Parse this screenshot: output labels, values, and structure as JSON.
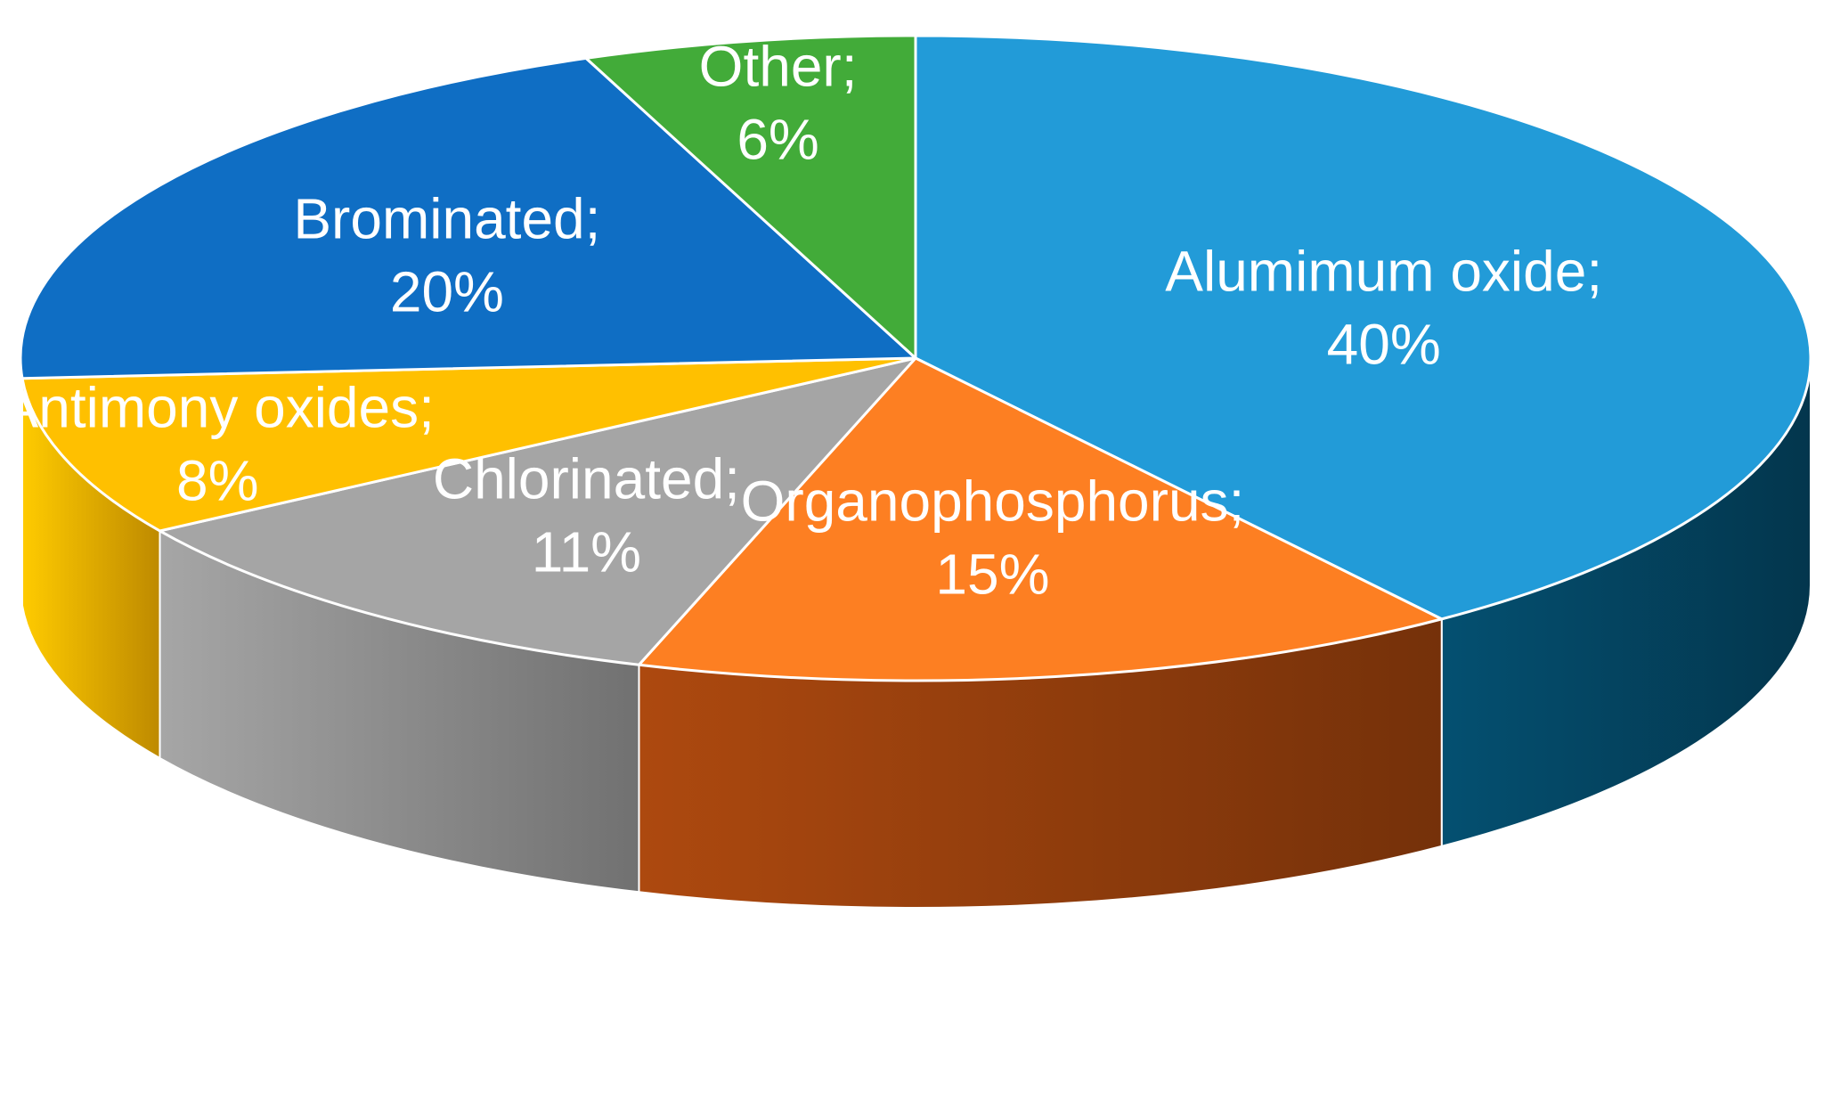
{
  "chart_data": {
    "type": "pie",
    "three_d": true,
    "label_separator": ";",
    "slices": [
      {
        "label": "Alumimum oxide",
        "value": 40,
        "percent_label": "40%",
        "color": "#229bd8",
        "side_color": "#03405a"
      },
      {
        "label": "Organophosphorus",
        "value": 15,
        "percent_label": "15%",
        "color": "#fd7f22",
        "side_color": "#8a3a0c"
      },
      {
        "label": "Chlorinated",
        "value": 11,
        "percent_label": "11%",
        "color": "#a5a5a5",
        "side_color": "#858585"
      },
      {
        "label": "Antimony oxides",
        "value": 8,
        "percent_label": "8%",
        "color": "#ffc000",
        "side_color": "#e0a200"
      },
      {
        "label": "Brominated",
        "value": 20,
        "percent_label": "20%",
        "color": "#0f6ec4",
        "side_color": "#0a4f8e"
      },
      {
        "label": "Other",
        "value": 6,
        "percent_label": "6%",
        "color": "#42ab39",
        "side_color": "#2f7d29"
      }
    ]
  }
}
